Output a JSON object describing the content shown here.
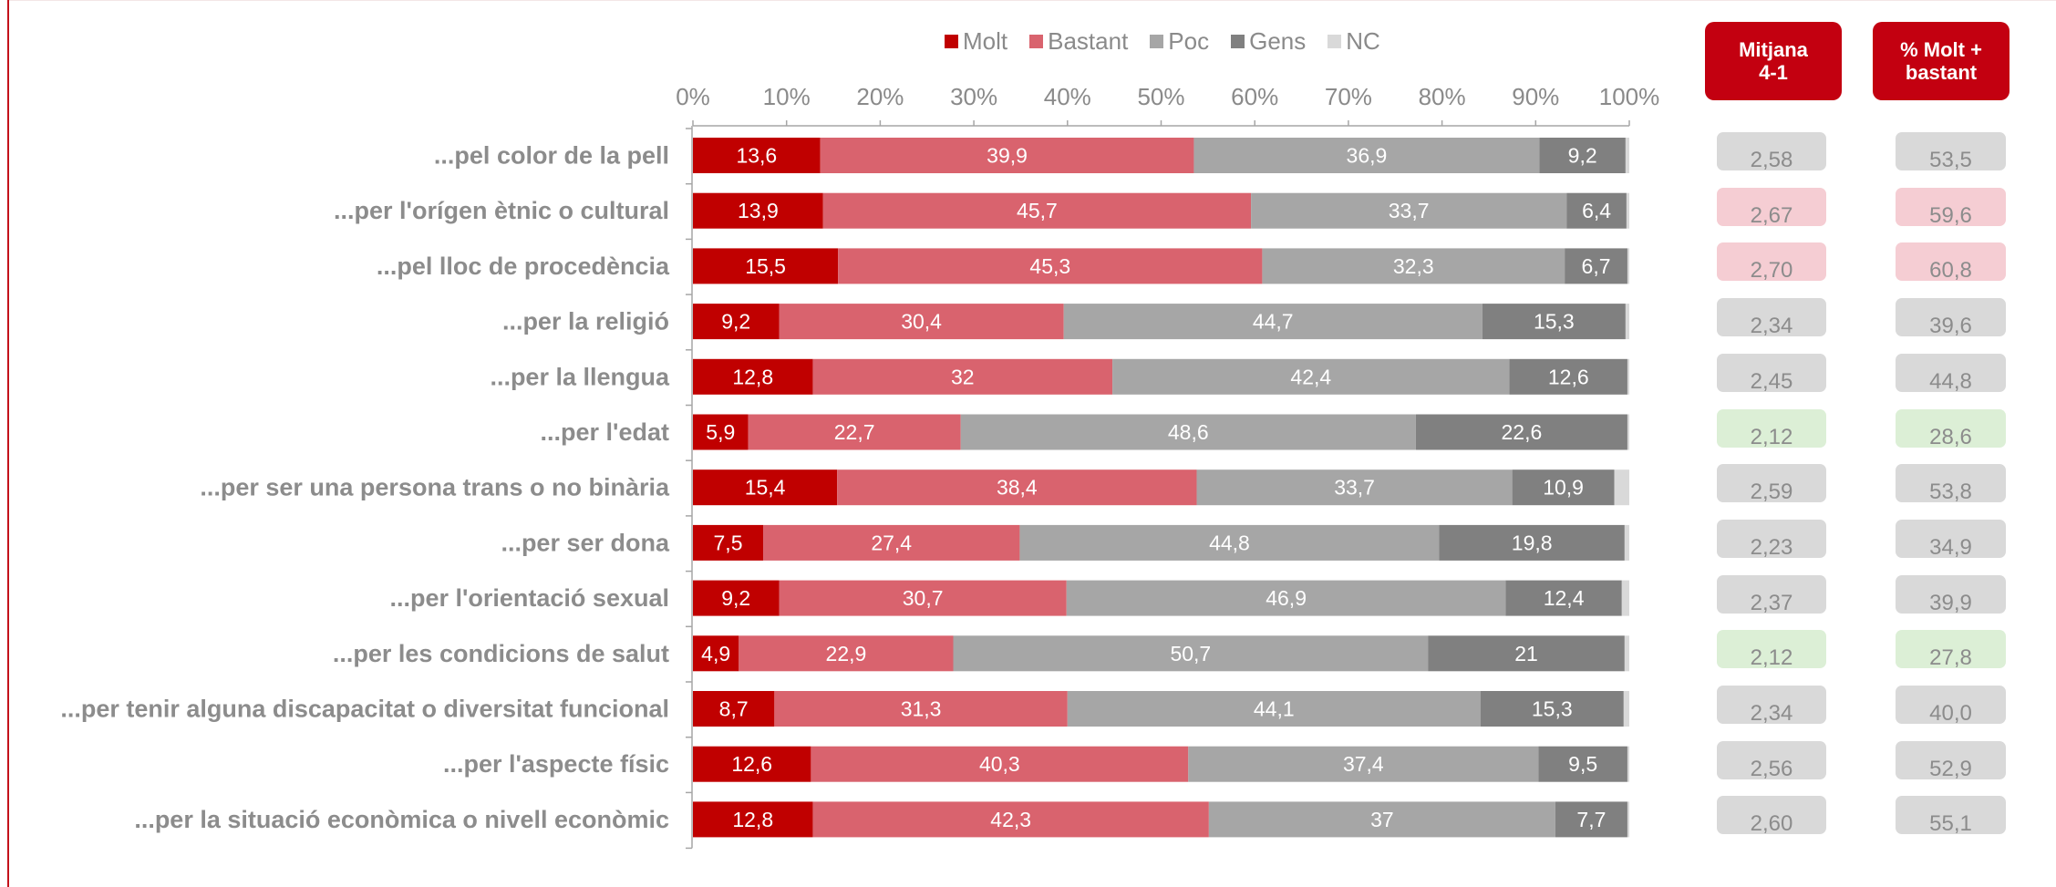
{
  "stat_headers": {
    "mean": "Mitjana\n4-1",
    "pct": "% Molt +\nbastant"
  },
  "colors": {
    "Molt": "#c00000",
    "Bastant": "#d9636e",
    "Poc": "#a6a6a6",
    "Gens": "#808080",
    "NC": "#d9d9d9",
    "box_grey": "#d9d9d9",
    "box_pink": "#f5cdd3",
    "box_green": "#dcefd6"
  },
  "chart_data": {
    "type": "bar",
    "orientation": "horizontal-stacked-100",
    "title": "",
    "xlabel": "",
    "ylabel": "",
    "xlim": [
      0,
      100
    ],
    "x_ticks": [
      "0%",
      "10%",
      "20%",
      "30%",
      "40%",
      "50%",
      "60%",
      "70%",
      "80%",
      "90%",
      "100%"
    ],
    "legend_position": "top",
    "categories": [
      "...pel color de la pell",
      "...per l'orígen ètnic o cultural",
      "...pel lloc de procedència",
      "...per la religió",
      "...per la llengua",
      "...per l'edat",
      "...per ser una persona trans o no binària",
      "...per ser dona",
      "...per l'orientació sexual",
      "...per les condicions de salut",
      "...per tenir alguna discapacitat o diversitat funcional",
      "...per l'aspecte físic",
      "...per la situació econòmica o nivell econòmic"
    ],
    "series": [
      {
        "name": "Molt",
        "values": [
          13.6,
          13.9,
          15.5,
          9.2,
          12.8,
          5.9,
          15.4,
          7.5,
          9.2,
          4.9,
          8.7,
          12.6,
          12.8
        ],
        "labels": [
          "13,6",
          "13,9",
          "15,5",
          "9,2",
          "12,8",
          "5,9",
          "15,4",
          "7,5",
          "9,2",
          "4,9",
          "8,7",
          "12,6",
          "12,8"
        ]
      },
      {
        "name": "Bastant",
        "values": [
          39.9,
          45.7,
          45.3,
          30.4,
          32,
          22.7,
          38.4,
          27.4,
          30.7,
          22.9,
          31.3,
          40.3,
          42.3
        ],
        "labels": [
          "39,9",
          "45,7",
          "45,3",
          "30,4",
          "32",
          "22,7",
          "38,4",
          "27,4",
          "30,7",
          "22,9",
          "31,3",
          "40,3",
          "42,3"
        ]
      },
      {
        "name": "Poc",
        "values": [
          36.9,
          33.7,
          32.3,
          44.7,
          42.4,
          48.6,
          33.7,
          44.8,
          46.9,
          50.7,
          44.1,
          37.4,
          37
        ],
        "labels": [
          "36,9",
          "33,7",
          "32,3",
          "44,7",
          "42,4",
          "48,6",
          "33,7",
          "44,8",
          "46,9",
          "50,7",
          "44,1",
          "37,4",
          "37"
        ]
      },
      {
        "name": "Gens",
        "values": [
          9.2,
          6.4,
          6.7,
          15.3,
          12.6,
          22.6,
          10.9,
          19.8,
          12.4,
          21,
          15.3,
          9.5,
          7.7
        ],
        "labels": [
          "9,2",
          "6,4",
          "6,7",
          "15,3",
          "12,6",
          "22,6",
          "10,9",
          "19,8",
          "12,4",
          "21",
          "15,3",
          "9,5",
          "7,7"
        ]
      },
      {
        "name": "NC",
        "values": [
          0.4,
          0.3,
          0.2,
          0.4,
          0.2,
          0.2,
          1.6,
          0.5,
          0.8,
          0.5,
          0.6,
          0.2,
          0.2
        ],
        "labels": [
          "",
          "",
          "",
          "",
          "",
          "",
          "",
          "",
          "",
          "",
          "",
          "",
          ""
        ]
      }
    ]
  },
  "stats": {
    "mean": [
      {
        "value": "2,58",
        "tone": "grey"
      },
      {
        "value": "2,67",
        "tone": "pink"
      },
      {
        "value": "2,70",
        "tone": "pink"
      },
      {
        "value": "2,34",
        "tone": "grey"
      },
      {
        "value": "2,45",
        "tone": "grey"
      },
      {
        "value": "2,12",
        "tone": "green"
      },
      {
        "value": "2,59",
        "tone": "grey"
      },
      {
        "value": "2,23",
        "tone": "grey"
      },
      {
        "value": "2,37",
        "tone": "grey"
      },
      {
        "value": "2,12",
        "tone": "green"
      },
      {
        "value": "2,34",
        "tone": "grey"
      },
      {
        "value": "2,56",
        "tone": "grey"
      },
      {
        "value": "2,60",
        "tone": "grey"
      }
    ],
    "pct": [
      {
        "value": "53,5",
        "tone": "grey"
      },
      {
        "value": "59,6",
        "tone": "pink"
      },
      {
        "value": "60,8",
        "tone": "pink"
      },
      {
        "value": "39,6",
        "tone": "grey"
      },
      {
        "value": "44,8",
        "tone": "grey"
      },
      {
        "value": "28,6",
        "tone": "green"
      },
      {
        "value": "53,8",
        "tone": "grey"
      },
      {
        "value": "34,9",
        "tone": "grey"
      },
      {
        "value": "39,9",
        "tone": "grey"
      },
      {
        "value": "27,8",
        "tone": "green"
      },
      {
        "value": "40,0",
        "tone": "grey"
      },
      {
        "value": "52,9",
        "tone": "grey"
      },
      {
        "value": "55,1",
        "tone": "grey"
      }
    ]
  }
}
